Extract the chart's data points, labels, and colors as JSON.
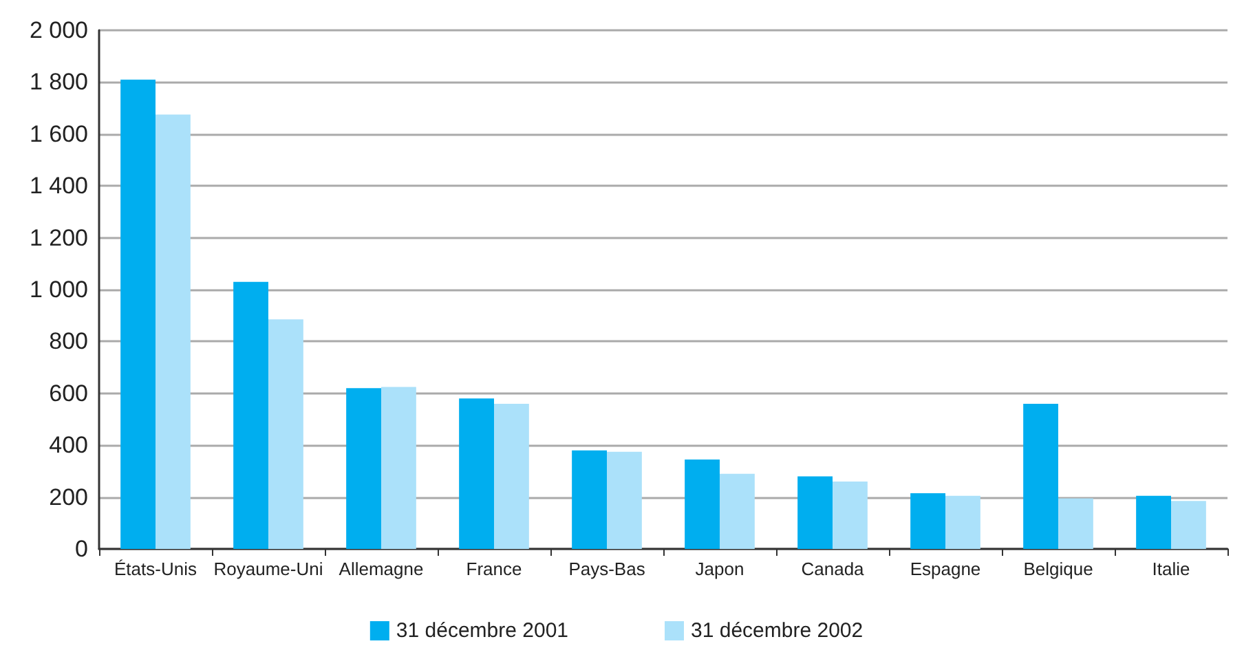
{
  "chart_data": {
    "type": "bar",
    "categories": [
      "États-Unis",
      "Royaume-Uni",
      "Allemagne",
      "France",
      "Pays-Bas",
      "Japon",
      "Canada",
      "Espagne",
      "Belgique",
      "Italie"
    ],
    "series": [
      {
        "name": "31 décembre 2001",
        "color": "#00aeef",
        "values": [
          1810,
          1030,
          620,
          580,
          380,
          345,
          280,
          215,
          560,
          205
        ]
      },
      {
        "name": "31 décembre 2002",
        "color": "#abe1fa",
        "values": [
          1675,
          885,
          625,
          560,
          375,
          290,
          260,
          205,
          195,
          185
        ]
      }
    ],
    "ylim": [
      0,
      2000
    ],
    "yticks": [
      {
        "value": 0,
        "label": "0"
      },
      {
        "value": 200,
        "label": "200"
      },
      {
        "value": 400,
        "label": "400"
      },
      {
        "value": 600,
        "label": "600"
      },
      {
        "value": 800,
        "label": "800"
      },
      {
        "value": 1000,
        "label": "1 000"
      },
      {
        "value": 1200,
        "label": "1 200"
      },
      {
        "value": 1400,
        "label": "1 400"
      },
      {
        "value": 1600,
        "label": "1 600"
      },
      {
        "value": 1800,
        "label": "1 800"
      },
      {
        "value": 2000,
        "label": "2 000"
      }
    ],
    "grid": "y",
    "legend": "bottom"
  }
}
